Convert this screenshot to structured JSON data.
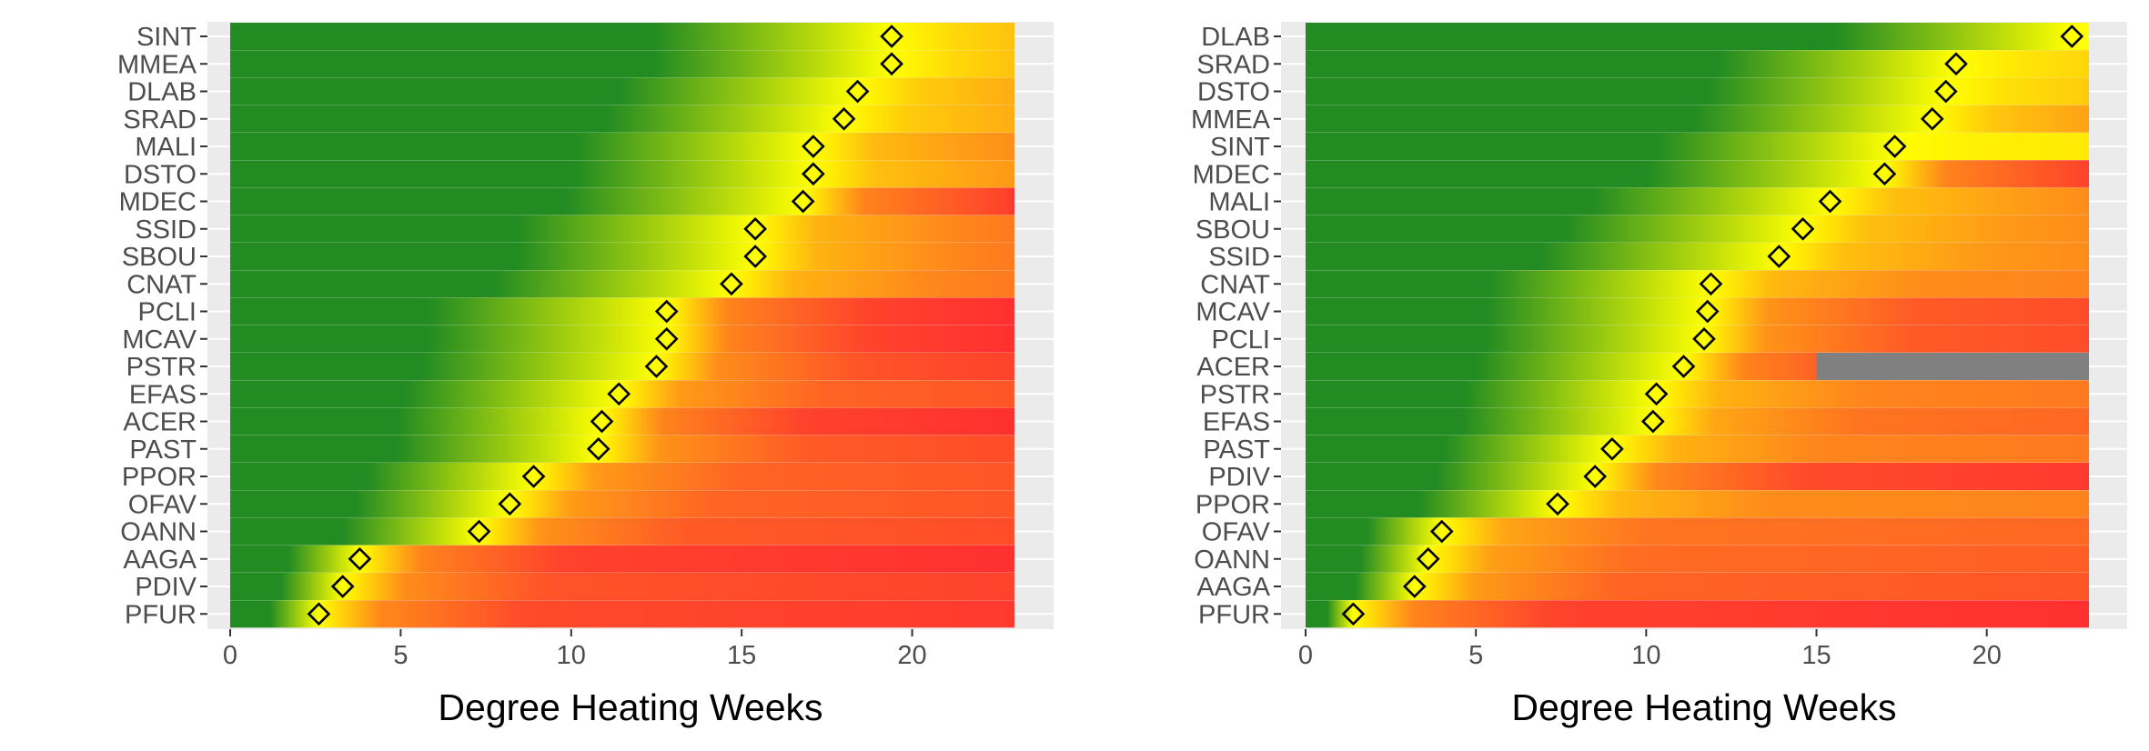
{
  "colors": {
    "panel_bg": "#EBEBEB",
    "grid": "#FFFFFF",
    "green": "#228B22",
    "yellow": "#FFFF00",
    "orange": "#FF8C1A",
    "red": "#FF3030",
    "missing": "#808080",
    "marker_stroke": "#000000",
    "tick_text": "#4D4D4D",
    "axis_title": "#000000"
  },
  "chart_data": [
    {
      "type": "heatmap",
      "xlabel": "Degree Heating Weeks",
      "ylabel": "",
      "xlim": [
        0,
        23
      ],
      "xticks": [
        0,
        5,
        10,
        15,
        20
      ],
      "grid": true,
      "legend": "none",
      "rows": [
        {
          "label": "SINT",
          "threshold": 19.4,
          "max_severity": 0.3
        },
        {
          "label": "MMEA",
          "threshold": 19.4,
          "max_severity": 0.3
        },
        {
          "label": "DLAB",
          "threshold": 18.4,
          "max_severity": 0.4
        },
        {
          "label": "SRAD",
          "threshold": 18.0,
          "max_severity": 0.4
        },
        {
          "label": "MALI",
          "threshold": 17.1,
          "max_severity": 0.55
        },
        {
          "label": "DSTO",
          "threshold": 17.1,
          "max_severity": 0.5
        },
        {
          "label": "MDEC",
          "threshold": 16.8,
          "max_severity": 1.0
        },
        {
          "label": "SSID",
          "threshold": 15.4,
          "max_severity": 0.6
        },
        {
          "label": "SBOU",
          "threshold": 15.4,
          "max_severity": 0.6
        },
        {
          "label": "CNAT",
          "threshold": 14.7,
          "max_severity": 0.6
        },
        {
          "label": "PCLI",
          "threshold": 12.8,
          "max_severity": 1.0
        },
        {
          "label": "MCAV",
          "threshold": 12.8,
          "max_severity": 1.0
        },
        {
          "label": "PSTR",
          "threshold": 12.5,
          "max_severity": 0.9
        },
        {
          "label": "EFAS",
          "threshold": 11.4,
          "max_severity": 0.8
        },
        {
          "label": "ACER",
          "threshold": 10.9,
          "max_severity": 1.0
        },
        {
          "label": "PAST",
          "threshold": 10.8,
          "max_severity": 0.85
        },
        {
          "label": "PPOR",
          "threshold": 8.9,
          "max_severity": 0.8
        },
        {
          "label": "OFAV",
          "threshold": 8.2,
          "max_severity": 0.8
        },
        {
          "label": "OANN",
          "threshold": 7.3,
          "max_severity": 0.85
        },
        {
          "label": "AAGA",
          "threshold": 3.8,
          "max_severity": 1.0
        },
        {
          "label": "PDIV",
          "threshold": 3.3,
          "max_severity": 0.9
        },
        {
          "label": "PFUR",
          "threshold": 2.6,
          "max_severity": 0.95
        }
      ]
    },
    {
      "type": "heatmap",
      "xlabel": "Degree Heating Weeks",
      "ylabel": "",
      "xlim": [
        0,
        23
      ],
      "xticks": [
        0,
        5,
        10,
        15,
        20
      ],
      "grid": true,
      "legend": "none",
      "rows": [
        {
          "label": "DLAB",
          "threshold": 22.5,
          "max_severity": 0.0
        },
        {
          "label": "SRAD",
          "threshold": 19.1,
          "max_severity": 0.2
        },
        {
          "label": "DSTO",
          "threshold": 18.8,
          "max_severity": 0.25
        },
        {
          "label": "MMEA",
          "threshold": 18.4,
          "max_severity": 0.45
        },
        {
          "label": "SINT",
          "threshold": 17.3,
          "max_severity": 0.1
        },
        {
          "label": "MDEC",
          "threshold": 17.0,
          "max_severity": 1.0
        },
        {
          "label": "MALI",
          "threshold": 15.4,
          "max_severity": 0.5
        },
        {
          "label": "SBOU",
          "threshold": 14.6,
          "max_severity": 0.5
        },
        {
          "label": "SSID",
          "threshold": 13.9,
          "max_severity": 0.5
        },
        {
          "label": "CNAT",
          "threshold": 11.9,
          "max_severity": 0.55
        },
        {
          "label": "MCAV",
          "threshold": 11.8,
          "max_severity": 0.85
        },
        {
          "label": "PCLI",
          "threshold": 11.7,
          "max_severity": 0.85
        },
        {
          "label": "ACER",
          "threshold": 11.1,
          "max_severity": 1.0,
          "missing_from": 15.0
        },
        {
          "label": "PSTR",
          "threshold": 10.3,
          "max_severity": 0.6
        },
        {
          "label": "EFAS",
          "threshold": 10.2,
          "max_severity": 0.7
        },
        {
          "label": "PAST",
          "threshold": 9.0,
          "max_severity": 0.6
        },
        {
          "label": "PDIV",
          "threshold": 8.5,
          "max_severity": 0.95
        },
        {
          "label": "PPOR",
          "threshold": 7.4,
          "max_severity": 0.55
        },
        {
          "label": "OFAV",
          "threshold": 4.0,
          "max_severity": 0.7
        },
        {
          "label": "OANN",
          "threshold": 3.6,
          "max_severity": 0.75
        },
        {
          "label": "AAGA",
          "threshold": 3.2,
          "max_severity": 0.8
        },
        {
          "label": "PFUR",
          "threshold": 1.4,
          "max_severity": 1.0
        }
      ]
    }
  ]
}
